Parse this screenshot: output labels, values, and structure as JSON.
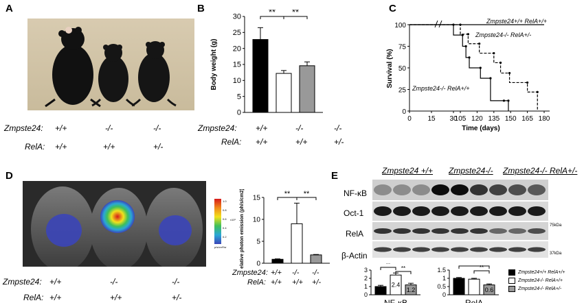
{
  "panels": {
    "A": {
      "label": "A",
      "genotype_rows": [
        {
          "title": "Zmpste24:",
          "values": [
            "+/+",
            "-/-",
            "-/-"
          ]
        },
        {
          "title": "RelA:",
          "values": [
            "+/+",
            "+/+",
            "+/-"
          ]
        }
      ]
    },
    "B": {
      "label": "B",
      "genotype_rows": [
        {
          "title": "Zmpste24:",
          "values": [
            "+/+",
            "-/-",
            "-/-"
          ]
        },
        {
          "title": "RelA:",
          "values": [
            "+/+",
            "+/+",
            "+/-"
          ]
        }
      ]
    },
    "C": {
      "label": "C"
    },
    "D": {
      "label": "D",
      "genotype_rows": [
        {
          "title": "Zmpste24:",
          "values": [
            "+/+",
            "-/-",
            "-/-"
          ]
        },
        {
          "title": "RelA:",
          "values": [
            "+/+",
            "+/+",
            "+/-"
          ]
        }
      ],
      "small_genotype_rows": [
        {
          "title": "Zmpste24:",
          "values": [
            "+/+",
            "-/-",
            "-/-"
          ]
        },
        {
          "title": "RelA:",
          "values": [
            "+/+",
            "+/+",
            "+/-"
          ]
        }
      ],
      "colorbar_ticks": [
        "1.0",
        "0.8",
        "0.6",
        "0.4",
        "0.2"
      ],
      "colorbar_exp": "x10⁶",
      "colorbar_unit": "p/s/cm²/sr",
      "colors": {
        "hot": "#d61a1a",
        "mid": "#f2e21c",
        "cool": "#3b45b8"
      }
    },
    "E": {
      "label": "E",
      "group_headers": [
        "Zmpste24 +/+",
        "Zmpste24-/-",
        "Zmpste24-/- RelA+/-"
      ],
      "band_labels": [
        "NF-κB",
        "Oct-1",
        "RelA",
        "β-Actin"
      ],
      "markers": [
        "75kDa",
        "37kDa"
      ],
      "legend": [
        {
          "label": "Zmpste24+/+ RelA+/+",
          "color": "#000000"
        },
        {
          "label": "Zmpste24-/- RelA+/+",
          "color": "#ffffff"
        },
        {
          "label": "Zmpste24-/- RelA+/-",
          "color": "#999999"
        }
      ]
    }
  },
  "chart_data": [
    {
      "type": "bar",
      "id": "B",
      "ylabel": "Body weight (g)",
      "categories": [
        "+/+ +/+",
        "-/- +/+",
        "-/- +/-"
      ],
      "values": [
        22.8,
        12.2,
        14.6
      ],
      "errors": [
        3.7,
        0.9,
        1.2
      ],
      "colors": [
        "#000000",
        "#ffffff",
        "#999999"
      ],
      "ylim": [
        0,
        30
      ],
      "yticks": [
        0,
        5,
        10,
        15,
        20,
        25,
        30
      ],
      "significance": [
        "**",
        "**"
      ]
    },
    {
      "type": "line",
      "id": "C",
      "ylabel": "Survival (%)",
      "xlabel": "Time (days)",
      "xticks_left": [
        0,
        15,
        30
      ],
      "xticks_right": [
        105,
        120,
        135,
        150,
        165,
        180
      ],
      "yticks": [
        0,
        25,
        50,
        75,
        100
      ],
      "ylim": [
        0,
        100
      ],
      "series": [
        {
          "name": "Zmpste24+/+ RelA+/+",
          "style": "solid",
          "x": [
            0,
            180
          ],
          "y": [
            100,
            100
          ]
        },
        {
          "name": "Zmpste24-/- RelA+/-",
          "style": "dashed",
          "x": [
            0,
            105,
            105,
            112,
            112,
            122,
            122,
            135,
            135,
            141,
            141,
            149,
            149,
            165,
            165,
            174,
            174
          ],
          "y": [
            100,
            100,
            89,
            89,
            78,
            78,
            67,
            67,
            56,
            56,
            44,
            44,
            33,
            33,
            22,
            22,
            0
          ]
        },
        {
          "name": "Zmpste24-/- RelA+/+",
          "style": "solid",
          "x": [
            0,
            102,
            102,
            107,
            107,
            110,
            110,
            113,
            113,
            123,
            123,
            132,
            132,
            144,
            144,
            148,
            148
          ],
          "y": [
            100,
            100,
            88,
            88,
            75,
            75,
            62,
            62,
            50,
            50,
            38,
            38,
            12,
            12,
            12,
            12,
            0
          ]
        }
      ]
    },
    {
      "type": "bar",
      "id": "D",
      "ylabel": "Relative photon emission (ph/s/cm2)",
      "values": [
        0.9,
        9.0,
        1.9
      ],
      "errors": [
        0.1,
        4.7,
        0.1
      ],
      "colors": [
        "#000000",
        "#ffffff",
        "#999999"
      ],
      "ylim": [
        0,
        15
      ],
      "yticks": [
        0,
        5,
        10,
        15
      ],
      "significance": [
        "**",
        "**"
      ]
    },
    {
      "type": "bar",
      "id": "E-nfkb",
      "xlabel": "NF-κB",
      "values": [
        1.0,
        2.4,
        1.2
      ],
      "data_labels": [
        "",
        "2.4",
        "1.2"
      ],
      "errors": [
        0.15,
        0.25,
        0.2
      ],
      "colors": [
        "#000000",
        "#ffffff",
        "#999999"
      ],
      "ylim": [
        0,
        3
      ],
      "yticks": [
        0,
        1,
        2,
        3
      ],
      "significance": [
        "**",
        "**"
      ]
    },
    {
      "type": "bar",
      "id": "E-rela",
      "xlabel": "RelA",
      "values": [
        1.0,
        0.95,
        0.6
      ],
      "data_labels": [
        "",
        "",
        "0.6"
      ],
      "errors": [
        0.05,
        0.05,
        0.06
      ],
      "colors": [
        "#000000",
        "#ffffff",
        "#999999"
      ],
      "ylim": [
        0,
        1.5
      ],
      "yticks": [
        0,
        0.5,
        1,
        1.5
      ],
      "yticklabels": [
        "0",
        "0.5",
        "1",
        "1.5"
      ],
      "significance": [
        "**",
        "**"
      ]
    }
  ]
}
